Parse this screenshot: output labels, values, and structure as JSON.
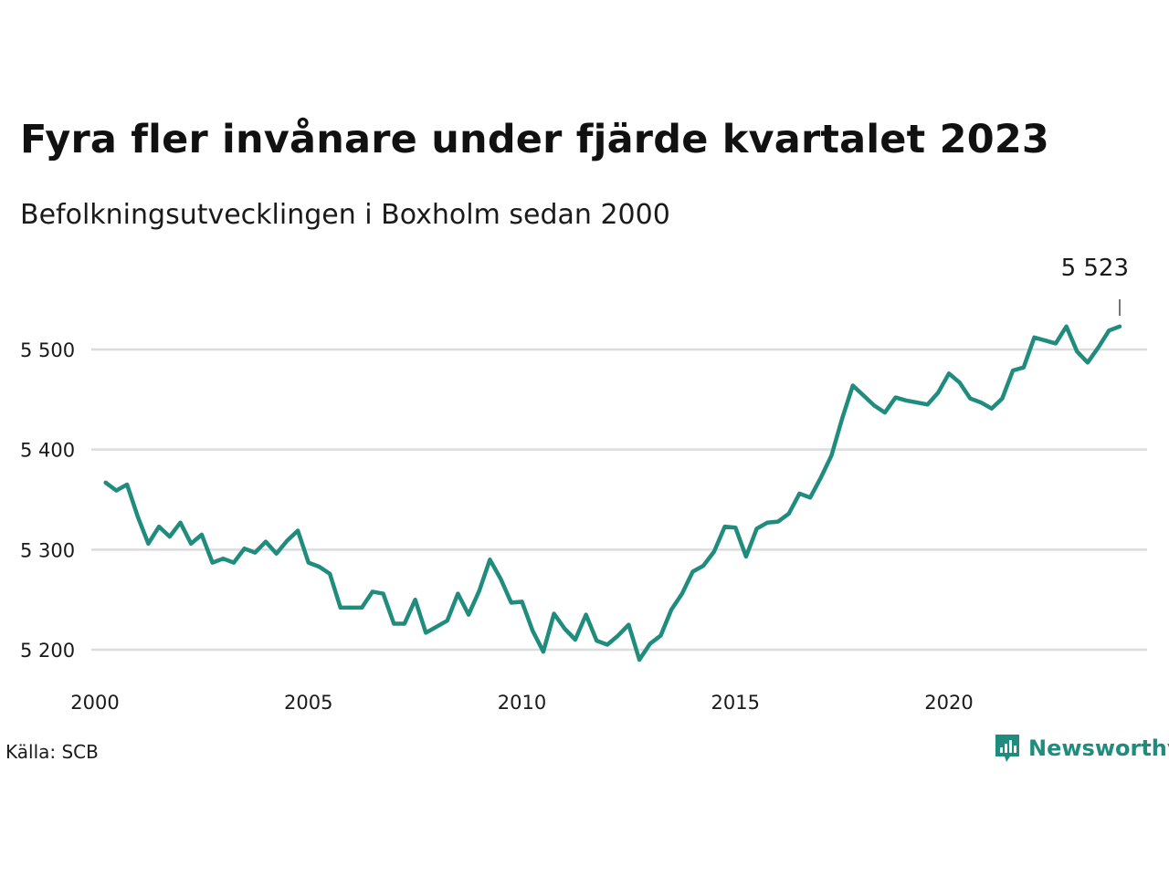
{
  "header": {
    "title": "Fyra fler invånare under fjärde kvartalet 2023",
    "subtitle": "Befolkningsutvecklingen i Boxholm sedan 2000"
  },
  "footer": {
    "source": "Källa: SCB",
    "brand": "Newsworthy",
    "brand_icon": "newsworthy-chart-logo-icon",
    "brand_color": "#1f8c7d"
  },
  "chart_data": {
    "type": "line",
    "title": "Fyra fler invånare under fjärde kvartalet 2023",
    "subtitle": "Befolkningsutvecklingen i Boxholm sedan 2000",
    "xlabel": "",
    "ylabel": "",
    "x_ticks": [
      2000,
      2005,
      2010,
      2015,
      2020
    ],
    "y_ticks": [
      5200,
      5300,
      5400,
      5500
    ],
    "y_tick_labels": [
      "5 200",
      "5 300",
      "5 400",
      "5 500"
    ],
    "xlim": [
      2000,
      2024.9
    ],
    "ylim": [
      5170,
      5570
    ],
    "grid": "horizontal",
    "line_color": "#1f8c7d",
    "annotation": {
      "label": "5 523",
      "x": 2023.75,
      "y": 5523
    },
    "series": [
      {
        "values": [
          {
            "x": 2000.25,
            "y": 5367
          },
          {
            "x": 2000.5,
            "y": 5359
          },
          {
            "x": 2000.75,
            "y": 5365
          },
          {
            "x": 2001.0,
            "y": 5333
          },
          {
            "x": 2001.25,
            "y": 5306
          },
          {
            "x": 2001.5,
            "y": 5323
          },
          {
            "x": 2001.75,
            "y": 5313
          },
          {
            "x": 2002.0,
            "y": 5327
          },
          {
            "x": 2002.25,
            "y": 5306
          },
          {
            "x": 2002.5,
            "y": 5315
          },
          {
            "x": 2002.75,
            "y": 5287
          },
          {
            "x": 2003.0,
            "y": 5291
          },
          {
            "x": 2003.25,
            "y": 5287
          },
          {
            "x": 2003.5,
            "y": 5301
          },
          {
            "x": 2003.75,
            "y": 5297
          },
          {
            "x": 2004.0,
            "y": 5308
          },
          {
            "x": 2004.25,
            "y": 5296
          },
          {
            "x": 2004.5,
            "y": 5309
          },
          {
            "x": 2004.75,
            "y": 5319
          },
          {
            "x": 2005.0,
            "y": 5287
          },
          {
            "x": 2005.25,
            "y": 5283
          },
          {
            "x": 2005.5,
            "y": 5276
          },
          {
            "x": 2005.75,
            "y": 5242
          },
          {
            "x": 2006.0,
            "y": 5242
          },
          {
            "x": 2006.25,
            "y": 5242
          },
          {
            "x": 2006.5,
            "y": 5258
          },
          {
            "x": 2006.75,
            "y": 5256
          },
          {
            "x": 2007.0,
            "y": 5226
          },
          {
            "x": 2007.25,
            "y": 5226
          },
          {
            "x": 2007.5,
            "y": 5250
          },
          {
            "x": 2007.75,
            "y": 5217
          },
          {
            "x": 2008.0,
            "y": 5223
          },
          {
            "x": 2008.25,
            "y": 5229
          },
          {
            "x": 2008.5,
            "y": 5256
          },
          {
            "x": 2008.75,
            "y": 5235
          },
          {
            "x": 2009.0,
            "y": 5259
          },
          {
            "x": 2009.25,
            "y": 5290
          },
          {
            "x": 2009.5,
            "y": 5271
          },
          {
            "x": 2009.75,
            "y": 5247
          },
          {
            "x": 2010.0,
            "y": 5248
          },
          {
            "x": 2010.25,
            "y": 5219
          },
          {
            "x": 2010.5,
            "y": 5198
          },
          {
            "x": 2010.75,
            "y": 5236
          },
          {
            "x": 2011.0,
            "y": 5221
          },
          {
            "x": 2011.25,
            "y": 5210
          },
          {
            "x": 2011.5,
            "y": 5235
          },
          {
            "x": 2011.75,
            "y": 5209
          },
          {
            "x": 2012.0,
            "y": 5205
          },
          {
            "x": 2012.25,
            "y": 5214
          },
          {
            "x": 2012.5,
            "y": 5225
          },
          {
            "x": 2012.75,
            "y": 5190
          },
          {
            "x": 2013.0,
            "y": 5206
          },
          {
            "x": 2013.25,
            "y": 5214
          },
          {
            "x": 2013.5,
            "y": 5240
          },
          {
            "x": 2013.75,
            "y": 5256
          },
          {
            "x": 2014.0,
            "y": 5278
          },
          {
            "x": 2014.25,
            "y": 5284
          },
          {
            "x": 2014.5,
            "y": 5298
          },
          {
            "x": 2014.75,
            "y": 5323
          },
          {
            "x": 2015.0,
            "y": 5322
          },
          {
            "x": 2015.25,
            "y": 5293
          },
          {
            "x": 2015.5,
            "y": 5321
          },
          {
            "x": 2015.75,
            "y": 5327
          },
          {
            "x": 2016.0,
            "y": 5328
          },
          {
            "x": 2016.25,
            "y": 5336
          },
          {
            "x": 2016.5,
            "y": 5356
          },
          {
            "x": 2016.75,
            "y": 5352
          },
          {
            "x": 2017.0,
            "y": 5372
          },
          {
            "x": 2017.25,
            "y": 5394
          },
          {
            "x": 2017.5,
            "y": 5431
          },
          {
            "x": 2017.75,
            "y": 5464
          },
          {
            "x": 2018.0,
            "y": 5454
          },
          {
            "x": 2018.25,
            "y": 5444
          },
          {
            "x": 2018.5,
            "y": 5437
          },
          {
            "x": 2018.75,
            "y": 5452
          },
          {
            "x": 2019.0,
            "y": 5449
          },
          {
            "x": 2019.25,
            "y": 5447
          },
          {
            "x": 2019.5,
            "y": 5445
          },
          {
            "x": 2019.75,
            "y": 5457
          },
          {
            "x": 2020.0,
            "y": 5476
          },
          {
            "x": 2020.25,
            "y": 5467
          },
          {
            "x": 2020.5,
            "y": 5451
          },
          {
            "x": 2020.75,
            "y": 5447
          },
          {
            "x": 2021.0,
            "y": 5441
          },
          {
            "x": 2021.25,
            "y": 5451
          },
          {
            "x": 2021.5,
            "y": 5479
          },
          {
            "x": 2021.75,
            "y": 5482
          },
          {
            "x": 2022.0,
            "y": 5512
          },
          {
            "x": 2022.25,
            "y": 5509
          },
          {
            "x": 2022.5,
            "y": 5506
          },
          {
            "x": 2022.75,
            "y": 5523
          },
          {
            "x": 2023.0,
            "y": 5498
          },
          {
            "x": 2023.25,
            "y": 5487
          },
          {
            "x": 2023.5,
            "y": 5502
          },
          {
            "x": 2023.75,
            "y": 5519
          },
          {
            "x": 2024.0,
            "y": 5523
          }
        ]
      }
    ]
  }
}
